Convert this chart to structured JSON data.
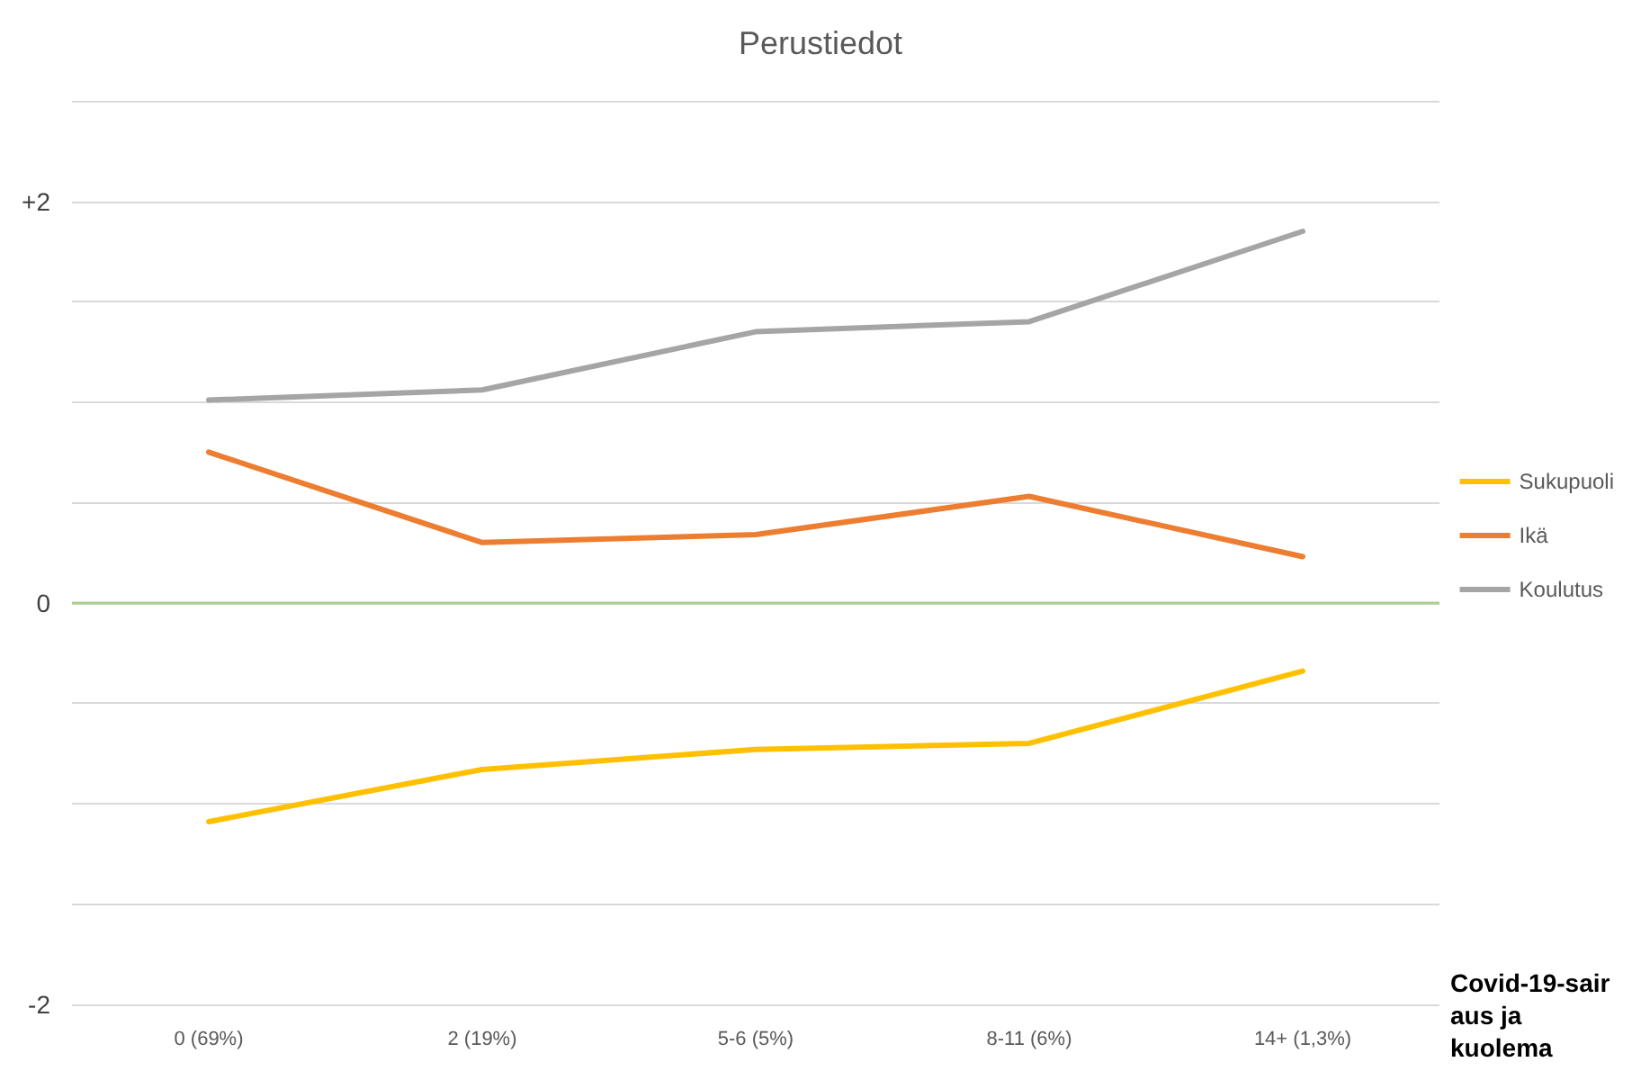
{
  "chart_data": {
    "type": "line",
    "title": "Perustiedot",
    "xlabel": "Covid-19-sairaus ja kuolema",
    "categories": [
      "0 (69%)",
      "2 (19%)",
      "5-6 (5%)",
      "8-11 (6%)",
      "14+ (1,3%)"
    ],
    "series": [
      {
        "name": "Sukupuoli",
        "color": "#ffc000",
        "values": [
          -1.09,
          -0.83,
          -0.73,
          -0.7,
          -0.34
        ]
      },
      {
        "name": "Ikä",
        "color": "#ed7d31",
        "values": [
          0.75,
          0.3,
          0.34,
          0.53,
          0.23
        ]
      },
      {
        "name": "Koulutus",
        "color": "#a5a5a5",
        "values": [
          1.01,
          1.06,
          1.35,
          1.4,
          1.85
        ]
      }
    ],
    "ylim": [
      -2,
      2.5
    ],
    "yticks": [
      -2,
      {
        "value": -1.5,
        "label": null
      },
      {
        "value": -1,
        "label": null
      },
      {
        "value": -0.5,
        "label": null
      },
      0,
      {
        "value": 0.5,
        "label": null
      },
      {
        "value": 1,
        "label": null
      },
      {
        "value": 1.5,
        "label": null
      },
      {
        "value": 2,
        "label": "+2"
      },
      {
        "value": 2.5,
        "label": null
      }
    ],
    "grid": "y",
    "legend": "right",
    "marker": "none",
    "line_style": "solid",
    "ref_lines": [
      {
        "axis": "y",
        "value": 0,
        "color": "#a9d18e"
      }
    ]
  }
}
